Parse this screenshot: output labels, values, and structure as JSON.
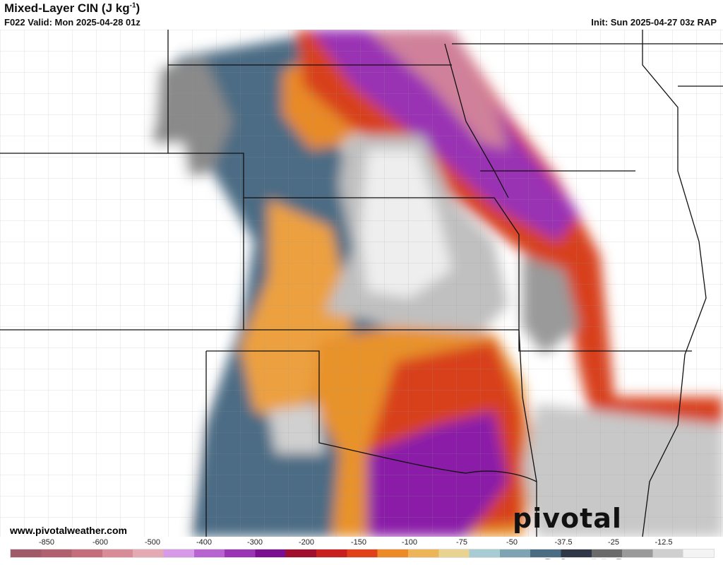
{
  "header": {
    "title": "Mixed-Layer CIN (J kg",
    "title_sup": "-1",
    "title_end": ")",
    "valid": "F022 Valid: Mon 2025-04-28 01z",
    "init": "Init: Sun 2025-04-27 03z RAP"
  },
  "footer": {
    "url": "www.pivotalweather.com",
    "logo": "pivotal weather"
  },
  "colorbar": {
    "ticks": [
      "-850",
      "-600",
      "-500",
      "-400",
      "-300",
      "-200",
      "-150",
      "-100",
      "-75",
      "-50",
      "-37.5",
      "-25",
      "-12.5"
    ],
    "colors": [
      "#a05a6a",
      "#b0606e",
      "#c46e7c",
      "#d88c98",
      "#e4aab4",
      "#d69ae6",
      "#b864d0",
      "#9a36b4",
      "#7a1090",
      "#a0102e",
      "#c8201e",
      "#e0401a",
      "#ec8a28",
      "#eeb458",
      "#e8d490",
      "#a8ccd4",
      "#7ea4b4",
      "#4c6c84",
      "#303848",
      "#6a6a6a",
      "#9a9a9a",
      "#cfcfcf",
      "#f4f4f4"
    ]
  }
}
